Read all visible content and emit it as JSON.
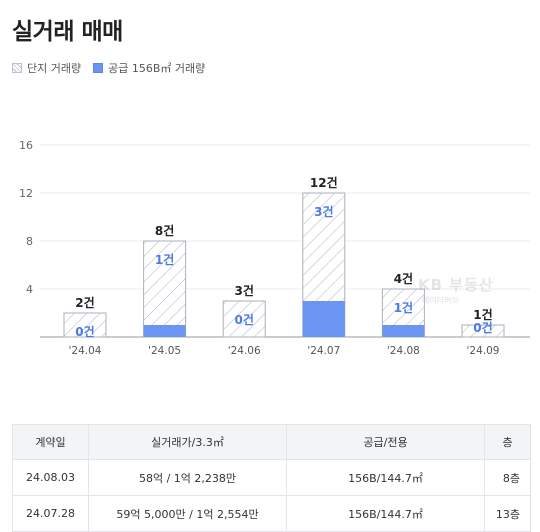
{
  "page": {
    "title": "실거래 매매"
  },
  "legend": [
    {
      "label": "단지 거래량",
      "style": "hatch"
    },
    {
      "label": "공급 156B㎡ 거래량",
      "style": "solid"
    }
  ],
  "colors": {
    "supply_bar": "#6a95f2",
    "supply_label": "#4a7bea",
    "hatch_line": "#aab4c8",
    "bar_border": "#aab0bc"
  },
  "watermark": {
    "main": "KB 부동산",
    "sub": "데이터허브"
  },
  "chart_data": {
    "type": "bar",
    "categories": [
      "'24.04",
      "'24.05",
      "'24.06",
      "'24.07",
      "'24.08",
      "'24.09"
    ],
    "series": [
      {
        "name": "단지 거래량",
        "values": [
          2,
          8,
          3,
          12,
          4,
          1
        ],
        "labels": [
          "2건",
          "8건",
          "3건",
          "12건",
          "4건",
          "1건"
        ]
      },
      {
        "name": "공급 156B㎡ 거래량",
        "values": [
          0,
          1,
          0,
          3,
          1,
          0
        ],
        "labels": [
          "0건",
          "1건",
          "0건",
          "3건",
          "1건",
          "0건"
        ]
      }
    ],
    "yticks": [
      4,
      8,
      12,
      16
    ],
    "ylim": [
      0,
      16
    ],
    "grid": true
  },
  "table": {
    "headers": [
      "계약일",
      "실거래가/3.3㎡",
      "공급/전용",
      "층"
    ],
    "rows": [
      [
        "24.08.03",
        "58억 / 1억 2,238만",
        "156B/144.7㎡",
        "8층"
      ],
      [
        "24.07.28",
        "59억 5,000만 / 1억 2,554만",
        "156B/144.7㎡",
        "13층"
      ]
    ]
  }
}
